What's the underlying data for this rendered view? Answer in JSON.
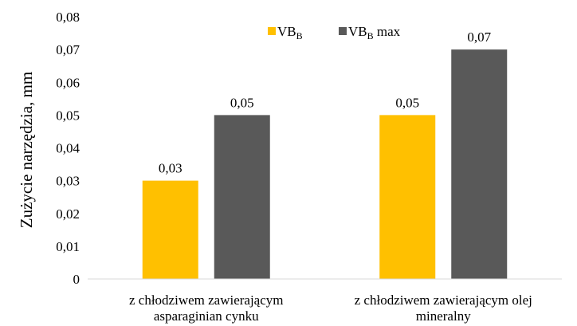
{
  "chart_data": {
    "type": "bar",
    "categories": [
      [
        "z chłodziwem zawierającym",
        "asparaginian cynku"
      ],
      [
        "z chłodziwem zawierającym olej",
        "mineralny"
      ]
    ],
    "series": [
      {
        "name": "VB",
        "name_sub": "B",
        "name_suffix": "",
        "color": "#FFC000",
        "values": [
          0.03,
          0.05
        ]
      },
      {
        "name": "VB",
        "name_sub": "B",
        "name_suffix": " max",
        "color": "#595959",
        "values": [
          0.05,
          0.07
        ]
      }
    ],
    "data_labels": [
      [
        "0,03",
        "0,05"
      ],
      [
        "0,05",
        "0,07"
      ]
    ],
    "ylabel": "Zużycie narzędzia, mm",
    "ylim": [
      0,
      0.08
    ],
    "yticks": [
      "0",
      "0,01",
      "0,02",
      "0,03",
      "0,04",
      "0,05",
      "0,06",
      "0,07",
      "0,08"
    ],
    "grid": false,
    "legend": "top-center"
  }
}
